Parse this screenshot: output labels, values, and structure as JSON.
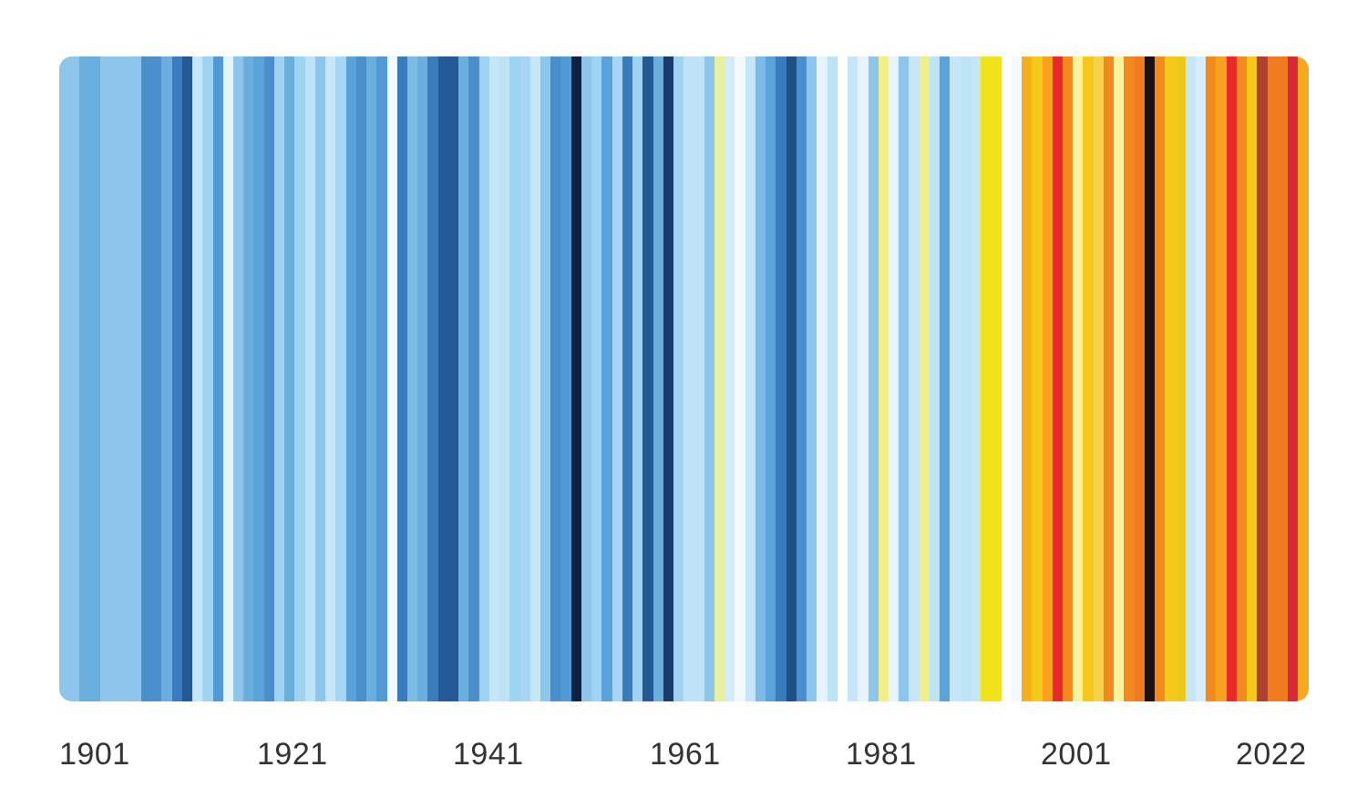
{
  "chart_data": {
    "type": "heatmap",
    "title": "",
    "xlabel": "",
    "ylabel": "",
    "legend": "none",
    "grid": false,
    "x_range": [
      1901,
      2022
    ],
    "tick_labels": [
      "1901",
      "1921",
      "1941",
      "1961",
      "1981",
      "2001",
      "2022"
    ],
    "years": [
      1901,
      1902,
      1903,
      1904,
      1905,
      1906,
      1907,
      1908,
      1909,
      1910,
      1911,
      1912,
      1913,
      1914,
      1915,
      1916,
      1917,
      1918,
      1919,
      1920,
      1921,
      1922,
      1923,
      1924,
      1925,
      1926,
      1927,
      1928,
      1929,
      1930,
      1931,
      1932,
      1933,
      1934,
      1935,
      1936,
      1937,
      1938,
      1939,
      1940,
      1941,
      1942,
      1943,
      1944,
      1945,
      1946,
      1947,
      1948,
      1949,
      1950,
      1951,
      1952,
      1953,
      1954,
      1955,
      1956,
      1957,
      1958,
      1959,
      1960,
      1961,
      1962,
      1963,
      1964,
      1965,
      1966,
      1967,
      1968,
      1969,
      1970,
      1971,
      1972,
      1973,
      1974,
      1975,
      1976,
      1977,
      1978,
      1979,
      1980,
      1981,
      1982,
      1983,
      1984,
      1985,
      1986,
      1987,
      1988,
      1989,
      1990,
      1991,
      1992,
      1993,
      1994,
      1995,
      1996,
      1997,
      1998,
      1999,
      2000,
      2001,
      2002,
      2003,
      2004,
      2005,
      2006,
      2007,
      2008,
      2009,
      2010,
      2011,
      2012,
      2013,
      2014,
      2015,
      2016,
      2017,
      2018,
      2019,
      2020,
      2021,
      2022
    ],
    "colors": [
      "#8ec5ea",
      "#8ec5ea",
      "#6aaede",
      "#6aaede",
      "#8ec5ea",
      "#8ec5ea",
      "#8ec5ea",
      "#8ec5ea",
      "#4a8fcb",
      "#4a8fcb",
      "#6aaede",
      "#3a7bbd",
      "#235a95",
      "#c6e6f7",
      "#9fd3f2",
      "#4f9ad6",
      "#e6f3fb",
      "#8ec5ea",
      "#6aaede",
      "#5aa2da",
      "#4a8fcb",
      "#9fd3f2",
      "#6aaede",
      "#9fd3f2",
      "#bfe3f6",
      "#8ec5ea",
      "#c6e6f7",
      "#a6d6f3",
      "#5aa2da",
      "#4a8fcb",
      "#6aaede",
      "#4f9ad6",
      "#f4f9ff",
      "#3a7bbd",
      "#7bbbe6",
      "#6aaede",
      "#3a7bbd",
      "#235a95",
      "#235a95",
      "#6aaede",
      "#4a8fcb",
      "#9fd3f2",
      "#c6e6f7",
      "#bfe3f6",
      "#9fd3f2",
      "#a6d6f3",
      "#c6e6f7",
      "#8ec5ea",
      "#4a8fcb",
      "#4f9ad6",
      "#102040",
      "#8ec5ea",
      "#9fd3f2",
      "#5aa2da",
      "#a6d6f3",
      "#3a7bbd",
      "#9fd3f2",
      "#235a95",
      "#6aaede",
      "#1a3b6e",
      "#9fd3f2",
      "#bfe3f6",
      "#bfe3f6",
      "#8ec5ea",
      "#e8f0a0",
      "#d4ecf9",
      "#f4f9ff",
      "#c6e6f7",
      "#7bbbe6",
      "#5aa2da",
      "#3a7bbd",
      "#1e4f85",
      "#4a8fcb",
      "#8ec5ea",
      "#e6f3fb",
      "#bfe3f6",
      "#ffffff",
      "#c6e6f7",
      "#e6f3fb",
      "#8ec5ea",
      "#f0ef8a",
      "#e6f3fb",
      "#8ec5ea",
      "#c6e6f7",
      "#f0ef8a",
      "#bfe3f6",
      "#5aa2da",
      "#c6e6f7",
      "#bfe3f6",
      "#c6e6f7",
      "#f0e21c",
      "#f0e21c",
      "#ffffff",
      "#f4f9ff",
      "#f5b01e",
      "#f5c81a",
      "#f8a21c",
      "#e82a2a",
      "#f28a1e",
      "#fdf2a0",
      "#f5c81a",
      "#f6d24a",
      "#f28a1e",
      "#fdf2a0",
      "#f28a1e",
      "#f07a1e",
      "#1c1010",
      "#f28a1e",
      "#f5c81a",
      "#f0c81c",
      "#c6e6f7",
      "#d8edf9",
      "#f28a1e",
      "#f5a01e",
      "#e82a2a",
      "#f28a1e",
      "#f5c81a",
      "#b04030",
      "#f07a1e",
      "#f07a1e",
      "#d8283a",
      "#f5a820"
    ]
  }
}
